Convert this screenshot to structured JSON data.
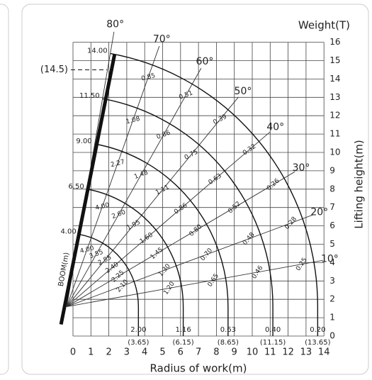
{
  "title": "Weight(T)",
  "y_axis_title": "Lifting height(m)",
  "x_axis_title": "Radius of work(m)",
  "boom_axis_label": "BOOM(m)",
  "max_height_label": "(14.5)",
  "xticks": [
    0,
    1,
    2,
    3,
    4,
    5,
    6,
    7,
    8,
    9,
    10,
    11,
    12,
    13,
    14
  ],
  "yticks": [
    0,
    1,
    2,
    3,
    4,
    5,
    6,
    7,
    8,
    9,
    10,
    11,
    12,
    13,
    14,
    15,
    16
  ],
  "angles": [
    "80°",
    "70°",
    "60°",
    "50°",
    "40°",
    "30°",
    "20°",
    "10°"
  ],
  "booms": [
    {
      "length": "4.00",
      "radius": "(3.65)",
      "loads": [
        "4.00",
        "3.55",
        "2.85",
        "2.40",
        "2.25",
        "2.10",
        "2.00"
      ]
    },
    {
      "length": "6.50",
      "radius": "(6.15)",
      "loads": [
        "4.00",
        "2.60",
        "1.95",
        "1.60",
        "1.45",
        "1.30",
        "1.20",
        "1.16"
      ]
    },
    {
      "length": "9.00",
      "radius": "(8.65)",
      "loads": [
        "2.27",
        "1.48",
        "1.11",
        "0.86",
        "0.80",
        "0.70",
        "0.65",
        "0.63"
      ]
    },
    {
      "length": "11.50",
      "radius": "(11.15)",
      "loads": [
        "1.08",
        "0.86",
        "0.75",
        "0.63",
        "0.52",
        "0.48",
        "0.46",
        "0.40"
      ]
    },
    {
      "length": "14.00",
      "radius": "(13.65)",
      "loads": [
        "0.85",
        "0.51",
        "0.39",
        "0.32",
        "0.26",
        "0.28",
        "0.25",
        "0.20"
      ]
    }
  ]
}
